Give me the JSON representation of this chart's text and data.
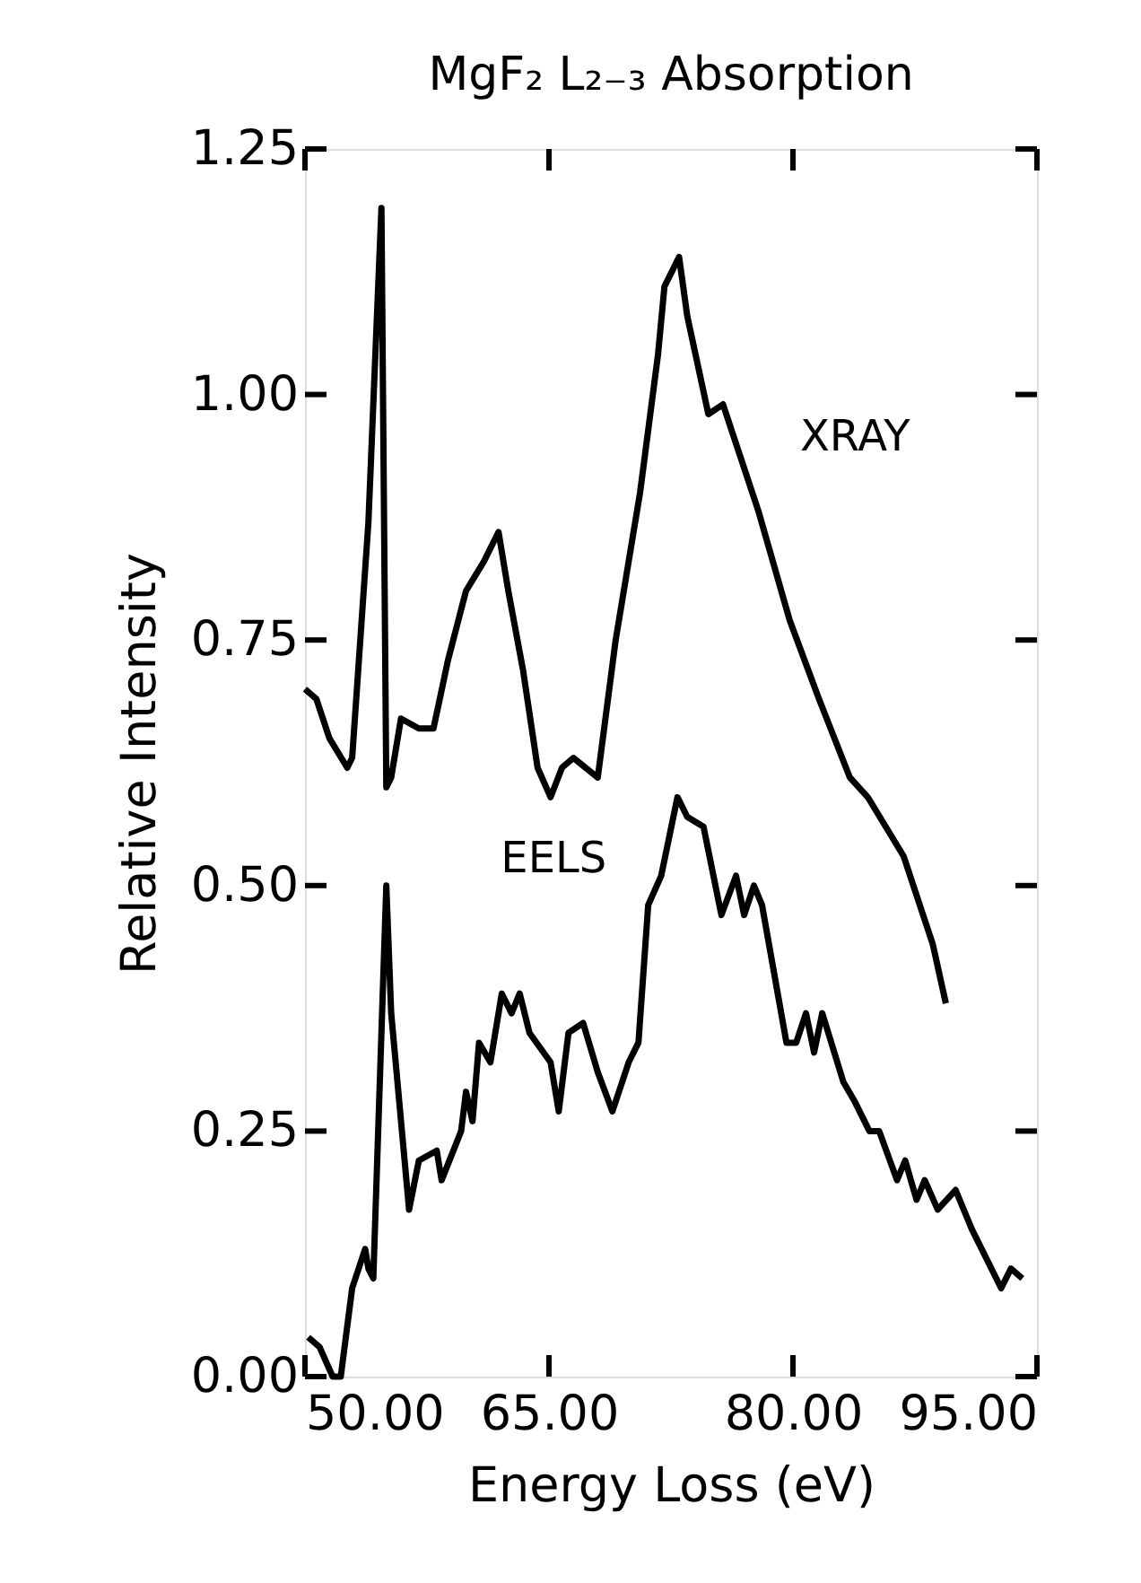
{
  "chart_data": {
    "type": "line",
    "title": "MgF₂ L₂₋₃ Absorption",
    "xlabel": "Energy Loss (eV)",
    "ylabel": "Relative Intensity",
    "xlim": [
      50,
      95
    ],
    "ylim": [
      0,
      1.25
    ],
    "xticks": [
      {
        "value": 50,
        "label": "50.00"
      },
      {
        "value": 65,
        "label": "65.00"
      },
      {
        "value": 80,
        "label": "80.00"
      },
      {
        "value": 95,
        "label": "95.00"
      }
    ],
    "yticks": [
      {
        "value": 0,
        "label": "0.00"
      },
      {
        "value": 0.25,
        "label": "0.25"
      },
      {
        "value": 0.5,
        "label": "0.50"
      },
      {
        "value": 0.75,
        "label": "0.75"
      },
      {
        "value": 1.0,
        "label": "1.00"
      },
      {
        "value": 1.25,
        "label": "1.25"
      }
    ],
    "grid": false,
    "line_style": "solid",
    "marker": "none",
    "series": [
      {
        "name": "XRAY",
        "color": "#000000",
        "x": [
          50.0,
          50.7,
          51.5,
          52.6,
          52.9,
          53.9,
          54.7,
          55.0,
          55.3,
          55.9,
          57.0,
          57.9,
          58.8,
          59.9,
          61.0,
          61.9,
          62.5,
          63.4,
          64.3,
          65.1,
          65.8,
          66.5,
          68.0,
          69.1,
          70.6,
          71.7,
          72.1,
          73.0,
          73.5,
          74.8,
          75.7,
          76.5,
          77.9,
          79.8,
          81.6,
          83.5,
          84.6,
          86.8,
          88.6,
          89.4
        ],
        "values": [
          0.7,
          0.69,
          0.65,
          0.62,
          0.63,
          0.87,
          1.19,
          0.6,
          0.61,
          0.67,
          0.66,
          0.66,
          0.73,
          0.8,
          0.83,
          0.86,
          0.8,
          0.72,
          0.62,
          0.59,
          0.62,
          0.63,
          0.61,
          0.75,
          0.9,
          1.04,
          1.11,
          1.14,
          1.08,
          0.98,
          0.99,
          0.95,
          0.88,
          0.77,
          0.69,
          0.61,
          0.59,
          0.53,
          0.44,
          0.38
        ]
      },
      {
        "name": "EELS",
        "color": "#000000",
        "x": [
          50.2,
          50.9,
          51.7,
          52.2,
          52.9,
          53.7,
          53.9,
          54.2,
          55.0,
          55.3,
          56.4,
          57.0,
          58.1,
          58.4,
          59.6,
          59.9,
          60.3,
          60.7,
          61.4,
          62.1,
          62.7,
          63.2,
          63.8,
          65.1,
          65.6,
          66.2,
          67.1,
          68.0,
          68.9,
          69.9,
          70.5,
          71.1,
          71.9,
          72.9,
          73.5,
          74.5,
          75.6,
          76.5,
          77.0,
          77.6,
          78.1,
          79.6,
          80.2,
          80.8,
          81.3,
          81.8,
          83.1,
          83.8,
          84.7,
          85.3,
          86.4,
          86.9,
          87.6,
          88.1,
          88.9,
          90.0,
          91.0,
          92.8,
          93.4,
          94.1
        ],
        "values": [
          0.04,
          0.03,
          0.0,
          0.0,
          0.09,
          0.13,
          0.11,
          0.1,
          0.5,
          0.37,
          0.17,
          0.22,
          0.23,
          0.2,
          0.25,
          0.29,
          0.26,
          0.34,
          0.32,
          0.39,
          0.37,
          0.39,
          0.35,
          0.32,
          0.27,
          0.35,
          0.36,
          0.31,
          0.27,
          0.32,
          0.34,
          0.48,
          0.51,
          0.59,
          0.57,
          0.56,
          0.47,
          0.51,
          0.47,
          0.5,
          0.48,
          0.34,
          0.34,
          0.37,
          0.33,
          0.37,
          0.3,
          0.28,
          0.25,
          0.25,
          0.2,
          0.22,
          0.18,
          0.2,
          0.17,
          0.19,
          0.15,
          0.09,
          0.11,
          0.1
        ]
      }
    ]
  }
}
